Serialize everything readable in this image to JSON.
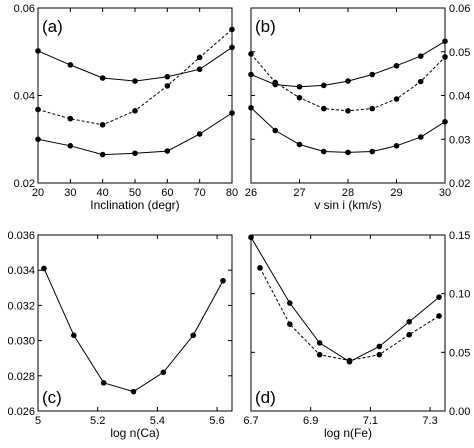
{
  "chart_data": [
    {
      "type": "line",
      "panel_label": "(a)",
      "xlabel": "Inclination (degr)",
      "ylabel": "",
      "xlim": [
        20,
        80
      ],
      "ylim": [
        0.02,
        0.06
      ],
      "xticks": [
        20,
        30,
        40,
        50,
        60,
        70,
        80
      ],
      "yticks": [
        0.02,
        0.04,
        0.06
      ],
      "ytick_labels": [
        "0.02",
        "0.04",
        "0.06"
      ],
      "y_axis_side": "left",
      "legend": "none",
      "grid": false,
      "series": [
        {
          "style": "solid",
          "x": [
            20,
            30,
            40,
            50,
            60,
            70,
            80
          ],
          "y": [
            0.0502,
            0.047,
            0.044,
            0.0433,
            0.0443,
            0.046,
            0.051
          ]
        },
        {
          "style": "dashed",
          "x": [
            20,
            30,
            40,
            50,
            60,
            70,
            80
          ],
          "y": [
            0.0368,
            0.0347,
            0.0333,
            0.0365,
            0.0422,
            0.0487,
            0.0551
          ]
        },
        {
          "style": "solid",
          "x": [
            20,
            30,
            40,
            50,
            60,
            70,
            80
          ],
          "y": [
            0.03,
            0.0285,
            0.0265,
            0.0268,
            0.0273,
            0.0312,
            0.036
          ]
        }
      ]
    },
    {
      "type": "line",
      "panel_label": "(b)",
      "xlabel": "v sin i (km/s)",
      "ylabel": "",
      "xlim": [
        26,
        30
      ],
      "ylim": [
        0.02,
        0.06
      ],
      "xticks": [
        26,
        27,
        28,
        29,
        30
      ],
      "yticks": [
        0.02,
        0.03,
        0.04,
        0.05,
        0.06
      ],
      "ytick_labels": [
        "0.02",
        "0.03",
        "0.04",
        "0.05",
        "0.06"
      ],
      "y_axis_side": "right",
      "legend": "none",
      "grid": false,
      "series": [
        {
          "style": "dashed",
          "x": [
            26,
            26.5,
            27,
            27.5,
            28,
            28.5,
            29,
            29.5,
            30
          ],
          "y": [
            0.0495,
            0.043,
            0.0395,
            0.037,
            0.0365,
            0.037,
            0.0392,
            0.0432,
            0.0488
          ]
        },
        {
          "style": "solid",
          "x": [
            26,
            26.5,
            27,
            27.5,
            28,
            28.5,
            29,
            29.5,
            30
          ],
          "y": [
            0.0448,
            0.0425,
            0.042,
            0.0423,
            0.0433,
            0.0448,
            0.0468,
            0.049,
            0.0524
          ]
        },
        {
          "style": "solid",
          "x": [
            26,
            26.5,
            27,
            27.5,
            28,
            28.5,
            29,
            29.5,
            30
          ],
          "y": [
            0.0372,
            0.032,
            0.0288,
            0.0272,
            0.027,
            0.0272,
            0.0285,
            0.0305,
            0.034
          ]
        }
      ]
    },
    {
      "type": "line",
      "panel_label": "(c)",
      "xlabel": "log n(Ca)",
      "ylabel": "",
      "xlim": [
        5.0,
        5.65
      ],
      "ylim": [
        0.026,
        0.036
      ],
      "xticks": [
        5.0,
        5.2,
        5.4,
        5.6
      ],
      "xtick_labels": [
        "5",
        "5.2",
        "5.4",
        "5.6"
      ],
      "yticks": [
        0.026,
        0.028,
        0.03,
        0.032,
        0.034,
        0.036
      ],
      "ytick_labels": [
        "0.026",
        "0.028",
        "0.030",
        "0.032",
        "0.034",
        "0.036"
      ],
      "y_axis_side": "left",
      "legend": "none",
      "grid": false,
      "series": [
        {
          "style": "solid",
          "x": [
            5.02,
            5.12,
            5.22,
            5.32,
            5.42,
            5.52,
            5.62
          ],
          "y": [
            0.0341,
            0.0303,
            0.0276,
            0.0271,
            0.0282,
            0.0303,
            0.0334
          ]
        }
      ]
    },
    {
      "type": "line",
      "panel_label": "(d)",
      "xlabel": "log n(Fe)",
      "ylabel": "",
      "xlim": [
        6.7,
        7.35
      ],
      "ylim": [
        0.0,
        0.15
      ],
      "xticks": [
        6.7,
        6.9,
        7.1,
        7.3
      ],
      "yticks": [
        0.0,
        0.05,
        0.1,
        0.15
      ],
      "ytick_labels": [
        "0.00",
        "0.05",
        "0.10",
        "0.15"
      ],
      "y_axis_side": "right",
      "legend": "none",
      "grid": false,
      "series": [
        {
          "style": "solid",
          "x": [
            6.7,
            6.83,
            6.93,
            7.03,
            7.13,
            7.23,
            7.33
          ],
          "y": [
            0.148,
            0.092,
            0.058,
            0.042,
            0.055,
            0.076,
            0.097
          ]
        },
        {
          "style": "dashed",
          "x": [
            6.73,
            6.83,
            6.93,
            7.03,
            7.13,
            7.23,
            7.33
          ],
          "y": [
            0.122,
            0.074,
            0.048,
            0.043,
            0.048,
            0.065,
            0.081
          ]
        }
      ]
    }
  ]
}
